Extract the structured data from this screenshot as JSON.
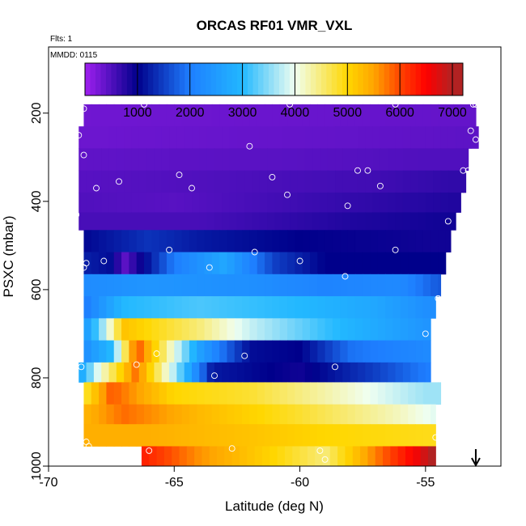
{
  "chart_data": {
    "type": "heatmap",
    "title": "ORCAS RF01 VMR_VXL",
    "annotations": [
      "Flts: 1",
      "MMDD: 0115"
    ],
    "xlabel": "Latitude (deg N)",
    "ylabel": "PSXC (mbar)",
    "xlim": [
      -70,
      -52
    ],
    "ylim": [
      1000,
      50
    ],
    "x_ticks": [
      -70,
      -65,
      -60,
      -55
    ],
    "x_tick_labels": [
      "-70",
      "-65",
      "-60",
      "-55"
    ],
    "y_ticks": [
      200,
      400,
      600,
      800,
      1000
    ],
    "y_tick_labels": [
      "200",
      "400",
      "600",
      "800",
      "1000"
    ],
    "colorbar": {
      "min": 0,
      "max": 7200,
      "ticks": [
        1000,
        2000,
        3000,
        4000,
        5000,
        6000,
        7000
      ],
      "tick_labels": [
        "1000",
        "2000",
        "3000",
        "4000",
        "5000",
        "6000",
        "7000"
      ],
      "stops": [
        {
          "v": 0,
          "c": "#a020f0"
        },
        {
          "v": 1000,
          "c": "#00008b"
        },
        {
          "v": 2000,
          "c": "#1e7eff"
        },
        {
          "v": 3000,
          "c": "#22b8ff"
        },
        {
          "v": 4000,
          "c": "#f0fff0"
        },
        {
          "v": 5000,
          "c": "#ffd700"
        },
        {
          "v": 5500,
          "c": "#ffa500"
        },
        {
          "v": 6000,
          "c": "#ff4500"
        },
        {
          "v": 6500,
          "c": "#ff0000"
        },
        {
          "v": 7000,
          "c": "#b22222"
        }
      ]
    },
    "rows": [
      {
        "p_top": 180,
        "p_bot": 230,
        "x_start": -68.6,
        "x_end": -53.0,
        "profile": [
          [
            -69,
            300
          ],
          [
            -53,
            380
          ]
        ]
      },
      {
        "p_top": 230,
        "p_bot": 280,
        "x_start": -68.8,
        "x_end": -52.9,
        "profile": [
          [
            -69,
            320
          ],
          [
            -53,
            420
          ]
        ]
      },
      {
        "p_top": 280,
        "p_bot": 330,
        "x_start": -68.8,
        "x_end": -53.3,
        "profile": [
          [
            -69,
            400
          ],
          [
            -60,
            450
          ],
          [
            -55,
            500
          ]
        ]
      },
      {
        "p_top": 330,
        "p_bot": 380,
        "x_start": -68.8,
        "x_end": -53.4,
        "profile": [
          [
            -69,
            450
          ],
          [
            -64,
            500
          ],
          [
            -57,
            600
          ],
          [
            -54,
            700
          ]
        ]
      },
      {
        "p_top": 380,
        "p_bot": 425,
        "x_start": -68.8,
        "x_end": -53.6,
        "profile": [
          [
            -69,
            500
          ],
          [
            -65,
            450
          ],
          [
            -59,
            650
          ],
          [
            -54,
            800
          ]
        ]
      },
      {
        "p_top": 425,
        "p_bot": 465,
        "x_start": -68.8,
        "x_end": -53.8,
        "profile": [
          [
            -69,
            550
          ],
          [
            -64,
            550
          ],
          [
            -58,
            800
          ],
          [
            -54,
            900
          ]
        ]
      },
      {
        "p_top": 465,
        "p_bot": 515,
        "x_start": -68.6,
        "x_end": -54.0,
        "profile": [
          [
            -69,
            1000
          ],
          [
            -66,
            1400
          ],
          [
            -64,
            1200
          ],
          [
            -60,
            1000
          ],
          [
            -55,
            900
          ]
        ]
      },
      {
        "p_top": 515,
        "p_bot": 565,
        "x_start": -68.6,
        "x_end": -54.2,
        "profile": [
          [
            -69,
            1300
          ],
          [
            -67.5,
            1100
          ],
          [
            -67,
            400
          ],
          [
            -65,
            2000
          ],
          [
            -63,
            2700
          ],
          [
            -61,
            1500
          ],
          [
            -59,
            1000
          ],
          [
            -55,
            1000
          ]
        ]
      },
      {
        "p_top": 565,
        "p_bot": 615,
        "x_start": -68.6,
        "x_end": -54.4,
        "profile": [
          [
            -69,
            2200
          ],
          [
            -66,
            2400
          ],
          [
            -62,
            2300
          ],
          [
            -59,
            2100
          ],
          [
            -56,
            2200
          ],
          [
            -54.5,
            1700
          ]
        ]
      },
      {
        "p_top": 615,
        "p_bot": 665,
        "x_start": -68.6,
        "x_end": -54.6,
        "profile": [
          [
            -69,
            1700
          ],
          [
            -67,
            3000
          ],
          [
            -64,
            3200
          ],
          [
            -60,
            3000
          ],
          [
            -57,
            2700
          ],
          [
            -55,
            2300
          ]
        ]
      },
      {
        "p_top": 665,
        "p_bot": 715,
        "x_start": -68.6,
        "x_end": -54.8,
        "profile": [
          [
            -69,
            1800
          ],
          [
            -68,
            3300
          ],
          [
            -67,
            5200
          ],
          [
            -64,
            4500
          ],
          [
            -62,
            3800
          ],
          [
            -59,
            3100
          ],
          [
            -55,
            2400
          ]
        ]
      },
      {
        "p_top": 715,
        "p_bot": 765,
        "x_start": -68.6,
        "x_end": -54.8,
        "profile": [
          [
            -69,
            2000
          ],
          [
            -67.5,
            3000
          ],
          [
            -66.5,
            6000
          ],
          [
            -65.5,
            4700
          ],
          [
            -64,
            2600
          ],
          [
            -62,
            1100
          ],
          [
            -60,
            1000
          ],
          [
            -58,
            1900
          ],
          [
            -55,
            2200
          ]
        ]
      },
      {
        "p_top": 765,
        "p_bot": 810,
        "x_start": -68.8,
        "x_end": -54.8,
        "profile": [
          [
            -69,
            2200
          ],
          [
            -68,
            4000
          ],
          [
            -66.5,
            5800
          ],
          [
            -65,
            3700
          ],
          [
            -63.5,
            1200
          ],
          [
            -60,
            900
          ],
          [
            -57,
            1500
          ],
          [
            -55,
            2000
          ]
        ]
      },
      {
        "p_top": 810,
        "p_bot": 860,
        "x_start": -68.6,
        "x_end": -54.4,
        "profile": [
          [
            -69,
            4300
          ],
          [
            -67.5,
            5900
          ],
          [
            -65,
            5000
          ],
          [
            -62,
            4800
          ],
          [
            -59,
            4300
          ],
          [
            -55,
            3600
          ]
        ]
      },
      {
        "p_top": 860,
        "p_bot": 905,
        "x_start": -68.6,
        "x_end": -54.6,
        "profile": [
          [
            -69,
            5200
          ],
          [
            -67,
            5800
          ],
          [
            -64,
            5300
          ],
          [
            -60,
            4800
          ],
          [
            -56,
            4200
          ],
          [
            -54.5,
            3900
          ]
        ]
      },
      {
        "p_top": 905,
        "p_bot": 955,
        "x_start": -68.6,
        "x_end": -54.6,
        "profile": [
          [
            -69,
            5400
          ],
          [
            -66,
            5400
          ],
          [
            -62,
            5200
          ],
          [
            -59,
            5000
          ],
          [
            -55,
            4900
          ]
        ]
      },
      {
        "p_top": 955,
        "p_bot": 1000,
        "x_start": -66.3,
        "x_end": -54.6,
        "profile": [
          [
            -66.3,
            6300
          ],
          [
            -64,
            5600
          ],
          [
            -61,
            5000
          ],
          [
            -59,
            4500
          ],
          [
            -57,
            5700
          ],
          [
            -55.5,
            6500
          ],
          [
            -54.6,
            7100
          ]
        ]
      }
    ],
    "points": [
      [
        -68.6,
        190
      ],
      [
        -66.2,
        180
      ],
      [
        -60.4,
        180
      ],
      [
        -56.2,
        180
      ],
      [
        -53.1,
        180
      ],
      [
        -53.0,
        180
      ],
      [
        -68.8,
        250
      ],
      [
        -68.6,
        295
      ],
      [
        -62.0,
        275
      ],
      [
        -53.2,
        240
      ],
      [
        -53.0,
        260
      ],
      [
        -64.8,
        340
      ],
      [
        -61.1,
        345
      ],
      [
        -57.7,
        330
      ],
      [
        -57.3,
        330
      ],
      [
        -53.5,
        330
      ],
      [
        -53.3,
        330
      ],
      [
        -67.2,
        355
      ],
      [
        -68.1,
        370
      ],
      [
        -64.3,
        370
      ],
      [
        -60.5,
        385
      ],
      [
        -56.8,
        365
      ],
      [
        -58.1,
        410
      ],
      [
        -54.1,
        445
      ],
      [
        -68.9,
        430
      ],
      [
        -65.2,
        510
      ],
      [
        -61.8,
        515
      ],
      [
        -56.2,
        510
      ],
      [
        -68.5,
        540
      ],
      [
        -68.6,
        550
      ],
      [
        -67.8,
        535
      ],
      [
        -63.6,
        550
      ],
      [
        -60.0,
        535
      ],
      [
        -58.2,
        570
      ],
      [
        -54.5,
        620
      ],
      [
        -55.0,
        700
      ],
      [
        -65.7,
        745
      ],
      [
        -62.2,
        750
      ],
      [
        -68.7,
        775
      ],
      [
        -66.5,
        770
      ],
      [
        -63.4,
        795
      ],
      [
        -58.6,
        775
      ],
      [
        -54.2,
        835
      ],
      [
        -68.5,
        945
      ],
      [
        -68.4,
        955
      ],
      [
        -66.0,
        965
      ],
      [
        -62.7,
        960
      ],
      [
        -59.2,
        965
      ],
      [
        -59.0,
        985
      ],
      [
        -54.6,
        935
      ],
      [
        -54.4,
        990
      ]
    ],
    "marker": {
      "type": "arrow-down",
      "x": -53.0
    }
  }
}
